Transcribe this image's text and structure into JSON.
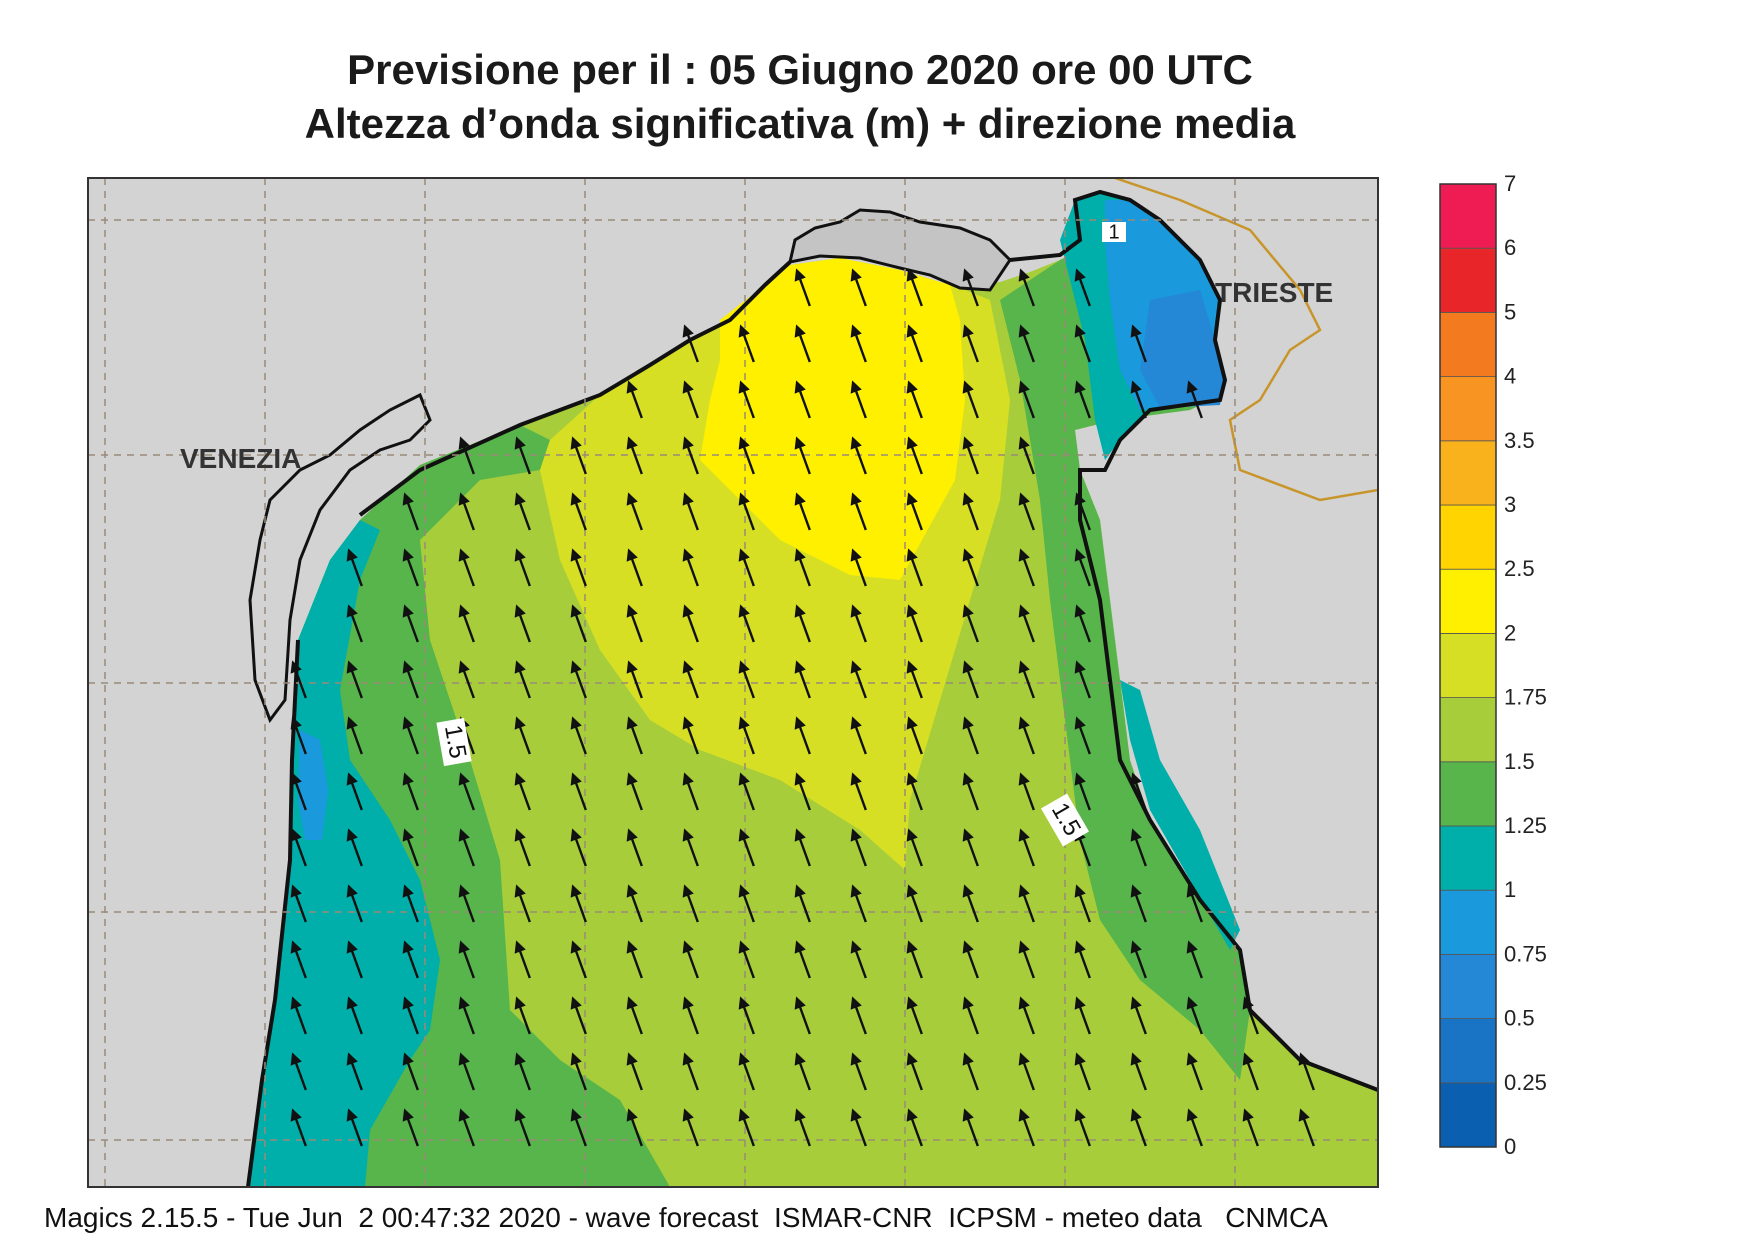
{
  "title": {
    "line1": "Previsione per il  :  05   Giugno  2020   ore 00 UTC",
    "line2": "Altezza d’onda significativa (m) + direzione media"
  },
  "map_labels": {
    "venezia": "VENEZIA",
    "trieste": "TRIESTE"
  },
  "contour_labels": [
    "1.5",
    "1.5",
    "1"
  ],
  "legend": {
    "levels": [
      "0",
      "0.25",
      "0.5",
      "0.75",
      "1",
      "1.25",
      "1.5",
      "1.75",
      "2",
      "2.5",
      "3",
      "3.5",
      "4",
      "5",
      "6",
      "7"
    ],
    "colors": [
      "#0a5fb0",
      "#1a74c6",
      "#2488d6",
      "#1a99dc",
      "#00aeaa",
      "#57b54c",
      "#a7ce3a",
      "#d7df25",
      "#fff000",
      "#ffd400",
      "#f9b21c",
      "#f79422",
      "#f47a20",
      "#e8262a",
      "#ee1c52"
    ]
  },
  "arrow_direction_deg": -20,
  "footer": "Magics 2.15.5 - Tue Jun  2 00:47:32 2020 - wave forecast  ISMAR-CNR  ICPSM - meteo data   CNMCA"
}
